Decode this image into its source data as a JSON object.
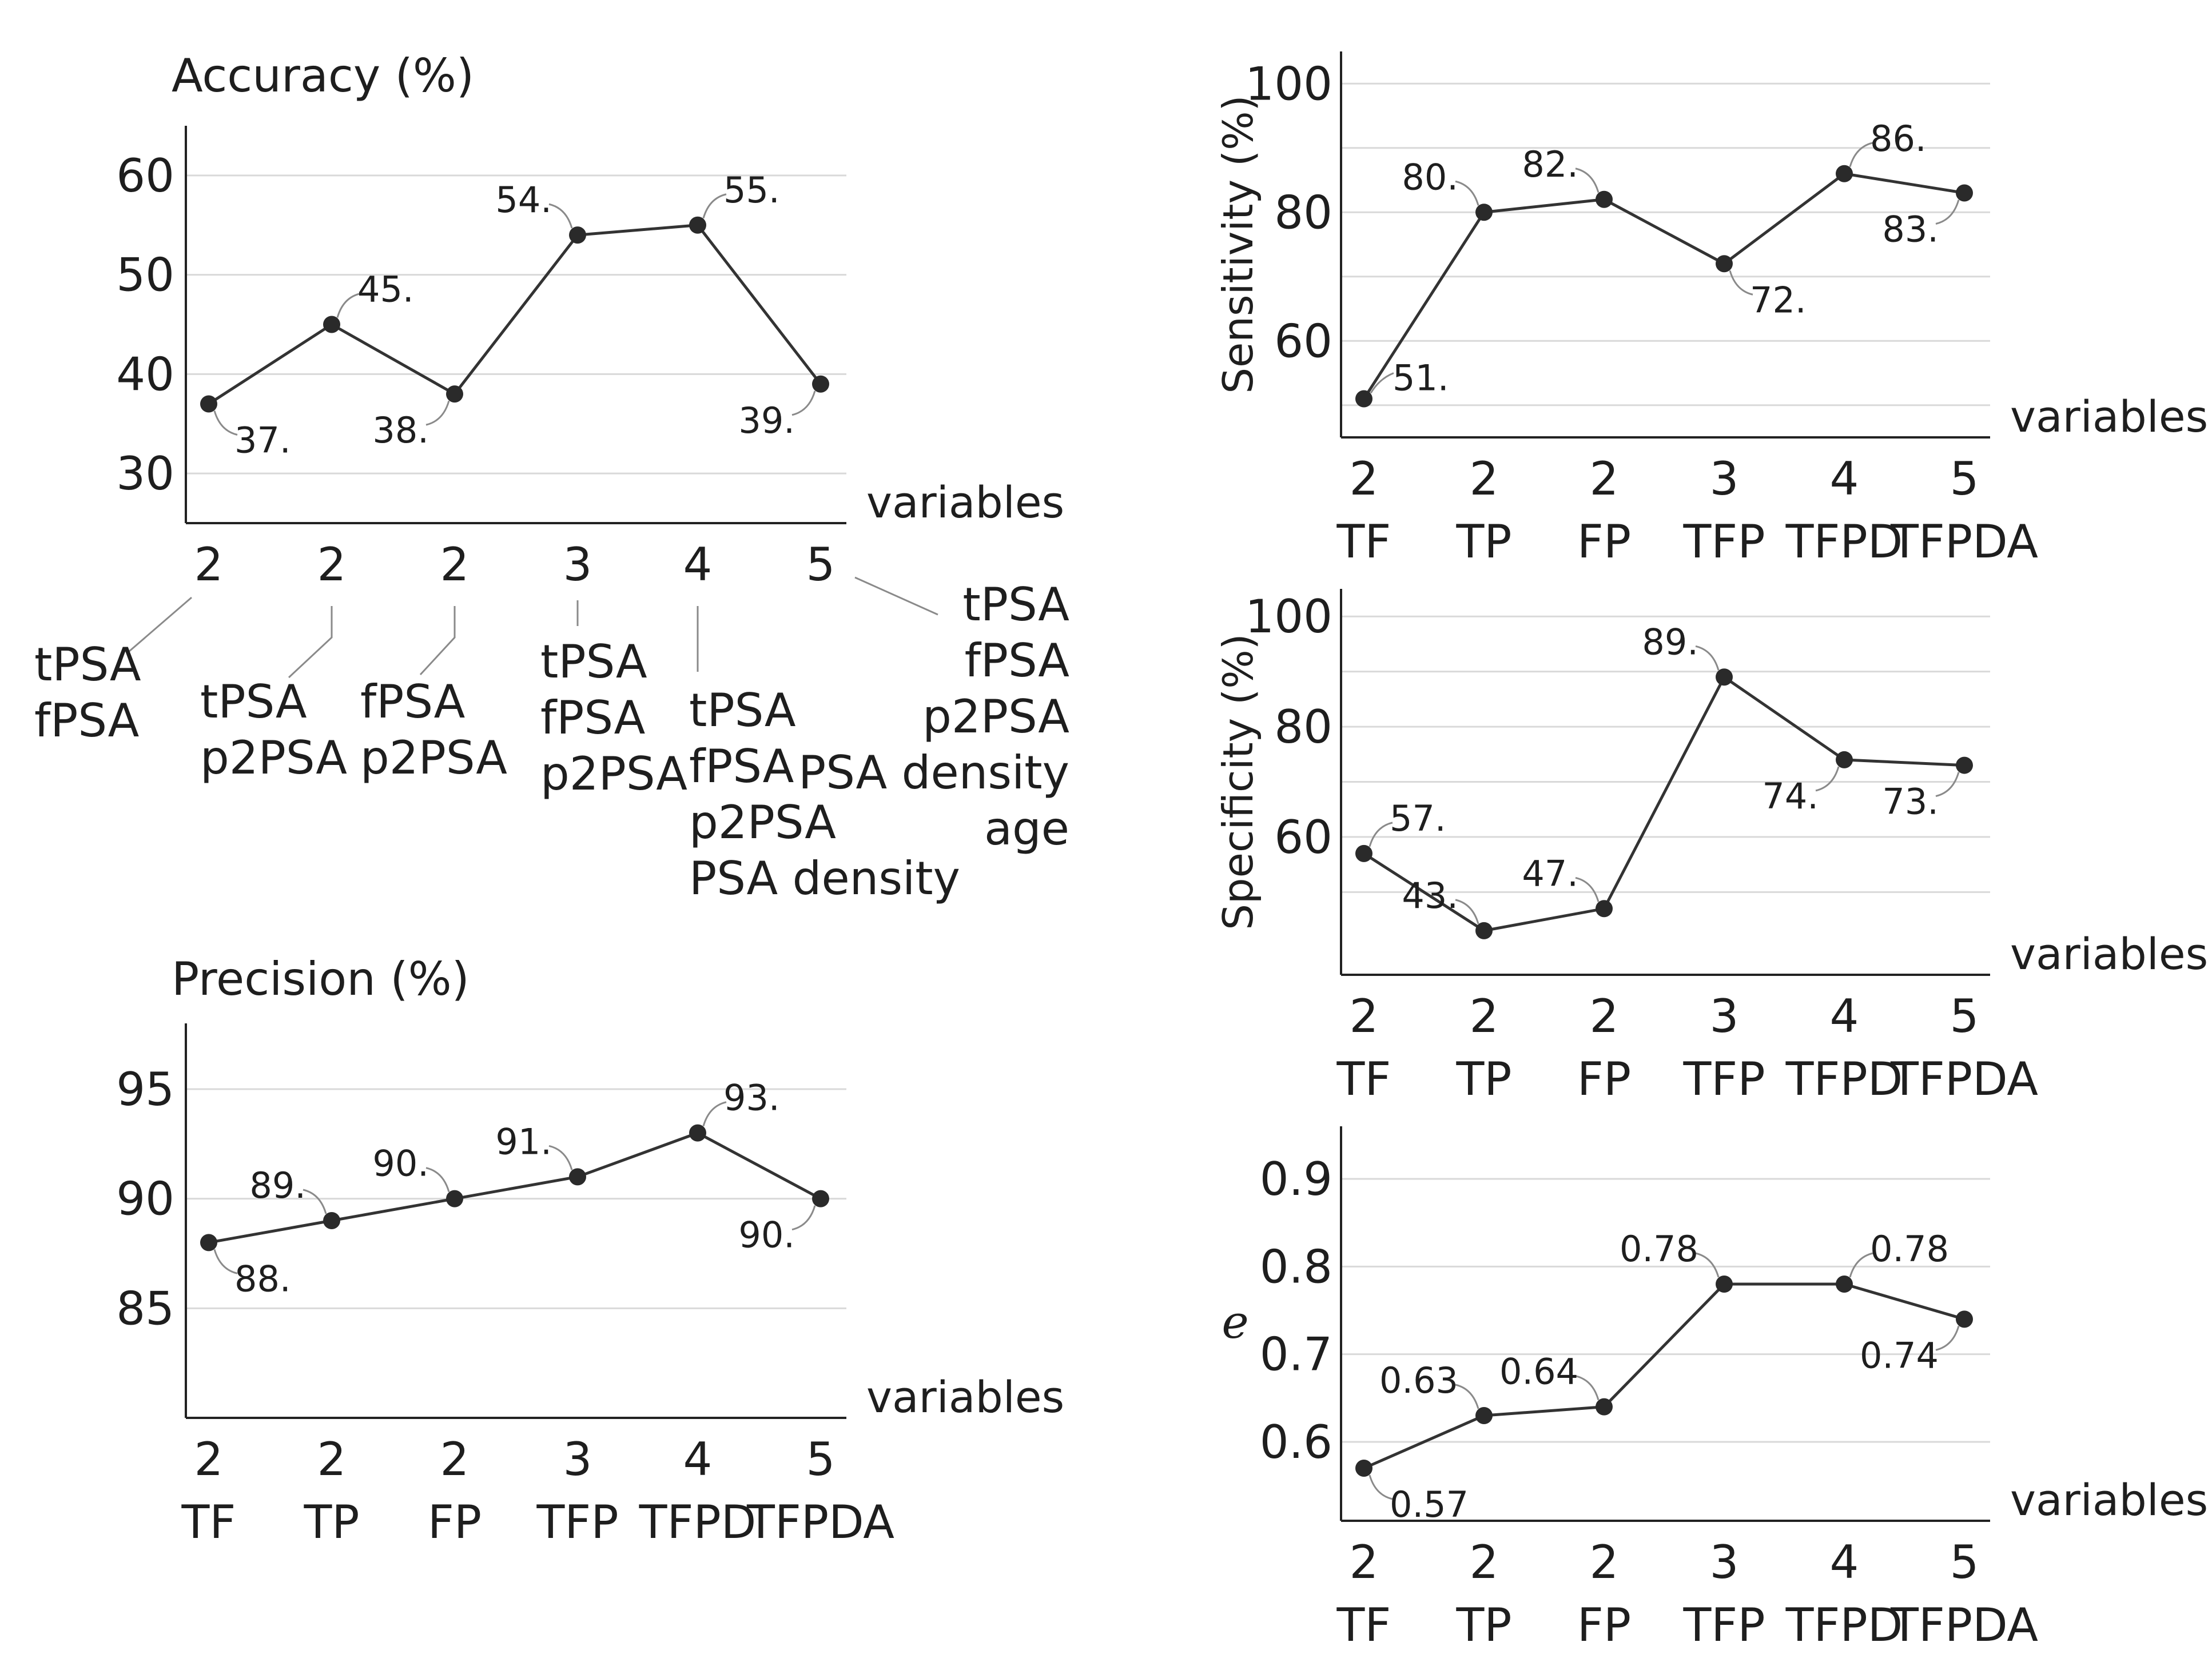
{
  "colors": {
    "line": "#333333",
    "grid": "#d9d9d9",
    "axis": "#222222",
    "text": "#1e1e1e"
  },
  "chart_data": [
    {
      "id": "accuracy",
      "type": "line",
      "title": "Accuracy (%)",
      "ylabel": "",
      "xlabel": "variables",
      "categories": [
        "2",
        "2",
        "2",
        "3",
        "4",
        "5"
      ],
      "category_descriptions": [
        [
          "tPSA",
          "fPSA"
        ],
        [
          "tPSA",
          "p2PSA"
        ],
        [
          "fPSA",
          "p2PSA"
        ],
        [
          "tPSA",
          "fPSA",
          "p2PSA"
        ],
        [
          "tPSA",
          "fPSA",
          "p2PSA",
          "PSA density"
        ],
        [
          "tPSA",
          "fPSA",
          "p2PSA",
          "PSA density",
          "age"
        ]
      ],
      "values": [
        37,
        45,
        38,
        54,
        55,
        39
      ],
      "data_labels": [
        "37.",
        "45.",
        "38.",
        "54.",
        "55.",
        "39."
      ],
      "label_side": [
        "below",
        "above",
        "below",
        "above",
        "above",
        "below"
      ],
      "ylim": [
        25,
        65
      ],
      "yticks": [
        30,
        40,
        50,
        60
      ],
      "grid": true
    },
    {
      "id": "precision",
      "type": "line",
      "title": "Precision (%)",
      "ylabel": "",
      "xlabel": "variables",
      "categories": [
        "2",
        "2",
        "2",
        "3",
        "4",
        "5"
      ],
      "subcategories": [
        "TF",
        "TP",
        "FP",
        "TFP",
        "TFPD",
        "TFPDA"
      ],
      "values": [
        88,
        89,
        90,
        91,
        93,
        90
      ],
      "data_labels": [
        "88.",
        "89.",
        "90.",
        "91.",
        "93.",
        "90."
      ],
      "label_side": [
        "below",
        "above",
        "above",
        "above",
        "above",
        "below"
      ],
      "ylim": [
        80,
        98
      ],
      "yticks": [
        85,
        90,
        95
      ],
      "grid": true
    },
    {
      "id": "sensitivity",
      "type": "line",
      "title": "",
      "ylabel": "Sensitivity (%)",
      "xlabel": "variables",
      "categories": [
        "2",
        "2",
        "2",
        "3",
        "4",
        "5"
      ],
      "subcategories": [
        "TF",
        "TP",
        "FP",
        "TFP",
        "TFPD",
        "TFPDA"
      ],
      "values": [
        51,
        80,
        82,
        72,
        86,
        83
      ],
      "data_labels": [
        "51.",
        "80.",
        "82.",
        "72.",
        "86.",
        "83."
      ],
      "label_side": [
        "right",
        "above",
        "above",
        "below",
        "above",
        "below"
      ],
      "ylim": [
        45,
        105
      ],
      "yticks": [
        60,
        80,
        100
      ],
      "grid": true
    },
    {
      "id": "specificity",
      "type": "line",
      "title": "",
      "ylabel": "Specificity (%)",
      "xlabel": "variables",
      "categories": [
        "2",
        "2",
        "2",
        "3",
        "4",
        "5"
      ],
      "subcategories": [
        "TF",
        "TP",
        "FP",
        "TFP",
        "TFPD",
        "TFPDA"
      ],
      "values": [
        57,
        43,
        47,
        89,
        74,
        73
      ],
      "data_labels": [
        "57.",
        "43.",
        "47.",
        "89.",
        "74.",
        "73."
      ],
      "label_side": [
        "above",
        "above",
        "above",
        "above",
        "below",
        "below"
      ],
      "ylim": [
        35,
        105
      ],
      "yticks": [
        60,
        80,
        100
      ],
      "grid": true
    },
    {
      "id": "e",
      "type": "line",
      "title": "",
      "ylabel": "e",
      "xlabel": "variables",
      "categories": [
        "2",
        "2",
        "2",
        "3",
        "4",
        "5"
      ],
      "subcategories": [
        "TF",
        "TP",
        "FP",
        "TFP",
        "TFPD",
        "TFPDA"
      ],
      "values": [
        0.57,
        0.63,
        0.64,
        0.78,
        0.78,
        0.74
      ],
      "data_labels": [
        "0.57",
        "0.63",
        "0.64",
        "0.78",
        "0.78",
        "0.74"
      ],
      "label_side": [
        "below",
        "above",
        "above",
        "above",
        "above",
        "below"
      ],
      "ylim": [
        0.51,
        0.96
      ],
      "yticks": [
        0.6,
        0.7,
        0.8,
        0.9
      ],
      "ytick_labels": [
        "0.6",
        "0.7",
        "0.8",
        "0.9"
      ],
      "grid": true
    }
  ]
}
